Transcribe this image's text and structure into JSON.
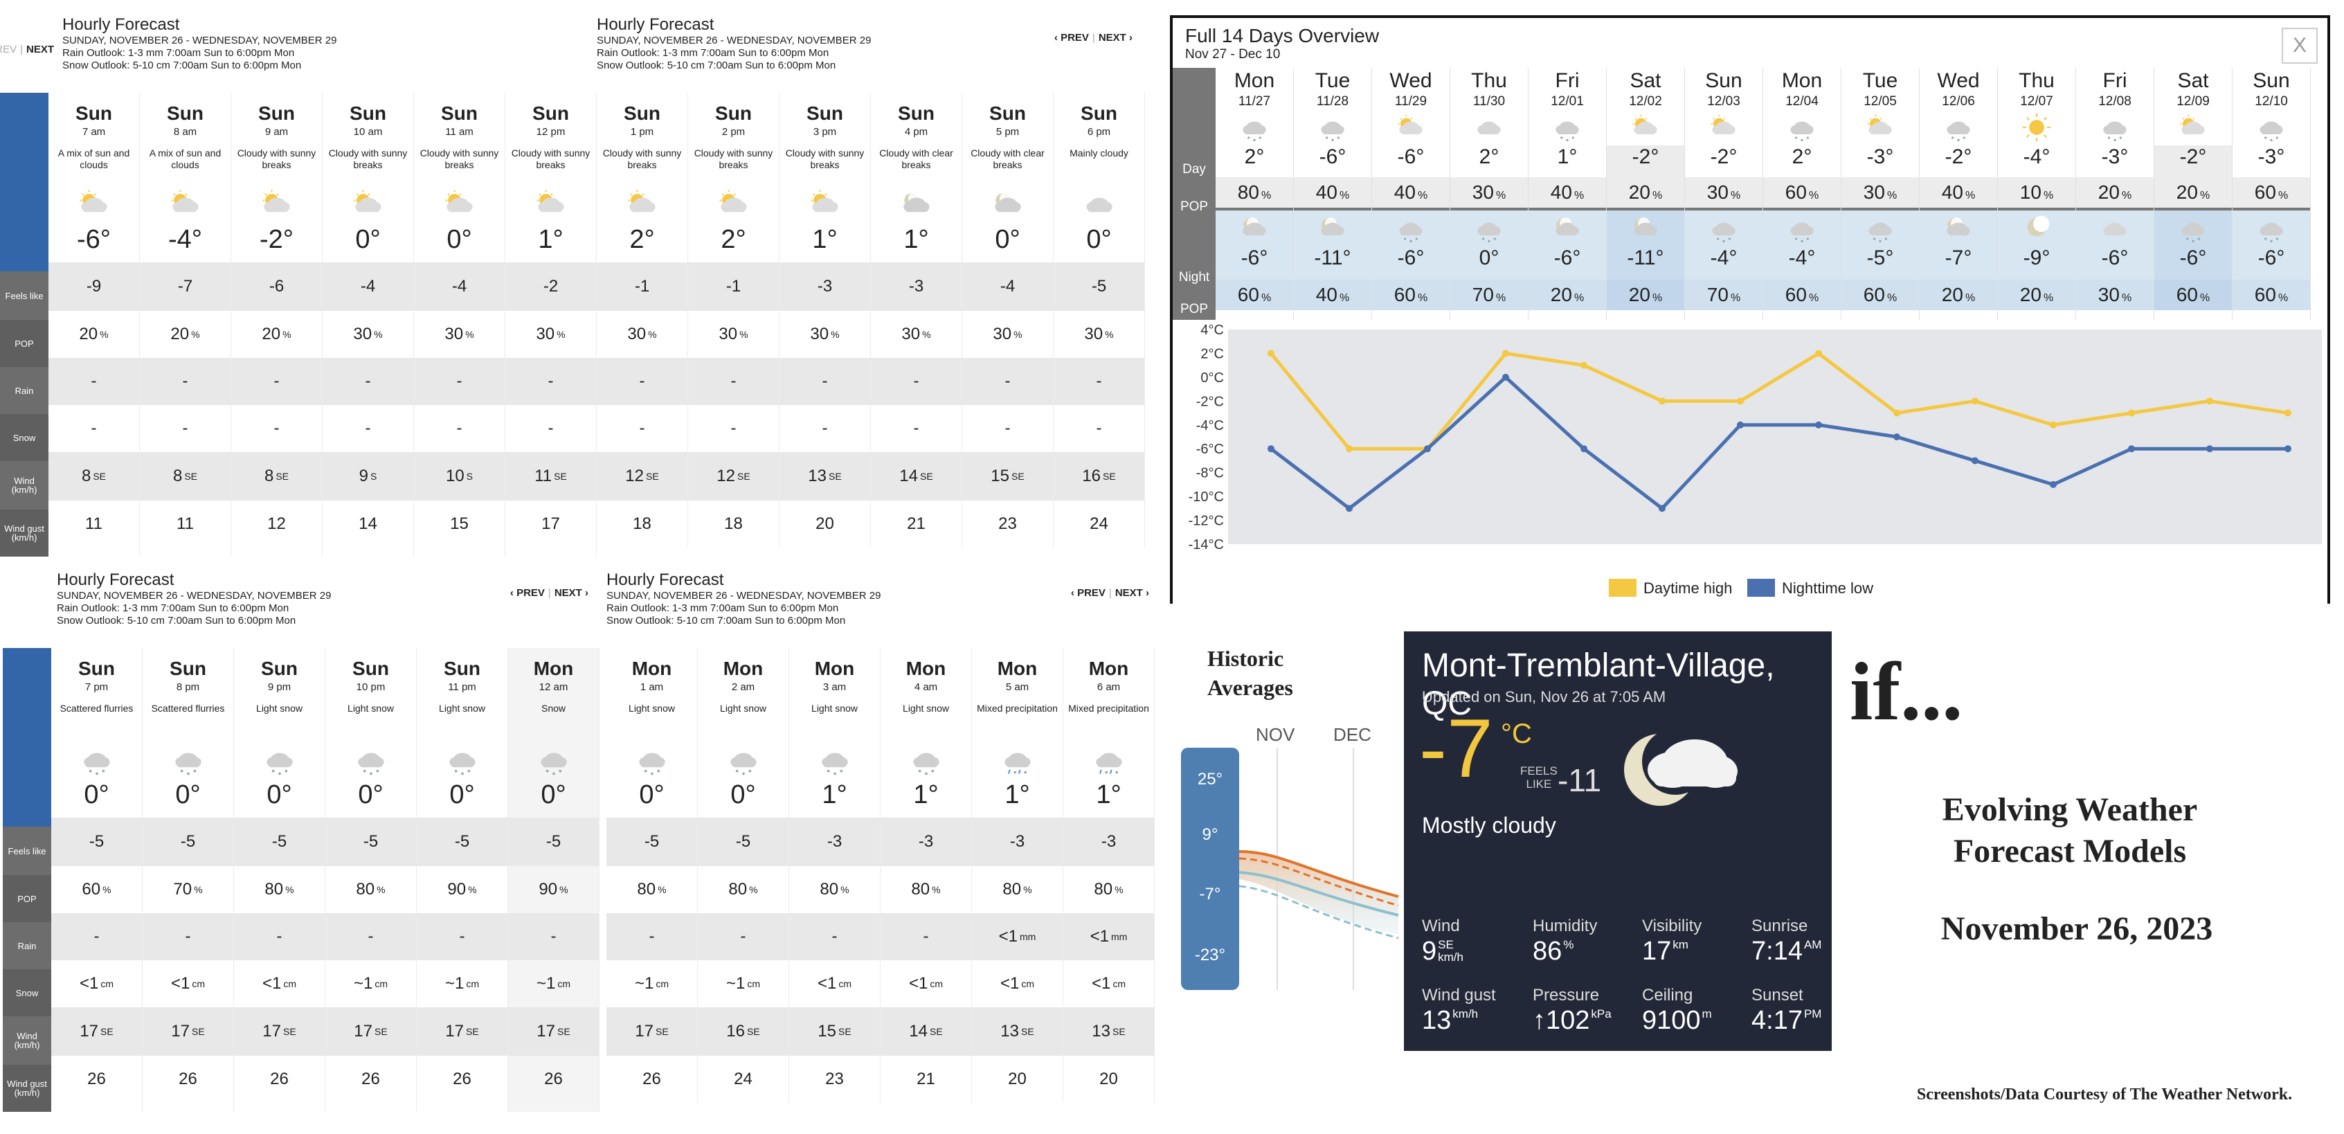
{
  "hourly_panels": [
    {
      "title": "Hourly Forecast",
      "dates": "SUNDAY, NOVEMBER 26 - WEDNESDAY, NOVEMBER 29",
      "rain": "Rain Outlook: 1-3 mm 7:00am Sun to 6:00pm Mon",
      "snow": "Snow Outlook: 5-10 cm 7:00am Sun to 6:00pm Mon",
      "prev": "‹ PREV",
      "next": "NEXT ›",
      "labels": [
        "Feels like",
        "POP",
        "Rain",
        "Snow",
        "Wind (km/h)",
        "Wind gust (km/h)"
      ],
      "hours": [
        {
          "day": "Sun",
          "time": "7 am",
          "cond": "A mix of sun and clouds",
          "icon": "sun-cloud-icon",
          "temp": "-6°",
          "feels": "-9",
          "pop": "20",
          "pop_unit": "%",
          "rain": "-",
          "snow": "-",
          "wind": "8",
          "dir": "SE",
          "gust": "11"
        },
        {
          "day": "Sun",
          "time": "8 am",
          "cond": "A mix of sun and clouds",
          "icon": "sun-cloud-icon",
          "temp": "-4°",
          "feels": "-7",
          "pop": "20",
          "pop_unit": "%",
          "rain": "-",
          "snow": "-",
          "wind": "8",
          "dir": "SE",
          "gust": "11"
        },
        {
          "day": "Sun",
          "time": "9 am",
          "cond": "Cloudy with sunny breaks",
          "icon": "sun-cloud-icon",
          "temp": "-2°",
          "feels": "-6",
          "pop": "20",
          "pop_unit": "%",
          "rain": "-",
          "snow": "-",
          "wind": "8",
          "dir": "SE",
          "gust": "12"
        },
        {
          "day": "Sun",
          "time": "10 am",
          "cond": "Cloudy with sunny breaks",
          "icon": "sun-cloud-icon",
          "temp": "0°",
          "feels": "-4",
          "pop": "30",
          "pop_unit": "%",
          "rain": "-",
          "snow": "-",
          "wind": "9",
          "dir": "S",
          "gust": "14"
        },
        {
          "day": "Sun",
          "time": "11 am",
          "cond": "Cloudy with sunny breaks",
          "icon": "sun-cloud-icon",
          "temp": "0°",
          "feels": "-4",
          "pop": "30",
          "pop_unit": "%",
          "rain": "-",
          "snow": "-",
          "wind": "10",
          "dir": "S",
          "gust": "15"
        },
        {
          "day": "Sun",
          "time": "12 pm",
          "cond": "Cloudy with sunny breaks",
          "icon": "sun-cloud-icon",
          "temp": "1°",
          "feels": "-2",
          "pop": "30",
          "pop_unit": "%",
          "rain": "-",
          "snow": "-",
          "wind": "11",
          "dir": "SE",
          "gust": "17"
        }
      ]
    },
    {
      "title": "Hourly Forecast",
      "dates": "SUNDAY, NOVEMBER 26 - WEDNESDAY, NOVEMBER 29",
      "rain": "Rain Outlook: 1-3 mm 7:00am Sun to 6:00pm Mon",
      "snow": "Snow Outlook: 5-10 cm 7:00am Sun to 6:00pm Mon",
      "prev": "‹ PREV",
      "next": "NEXT ›",
      "hours": [
        {
          "day": "Sun",
          "time": "1 pm",
          "cond": "Cloudy with sunny breaks",
          "icon": "sun-cloud-icon",
          "temp": "2°",
          "feels": "-1",
          "pop": "30",
          "pop_unit": "%",
          "rain": "-",
          "snow": "-",
          "wind": "12",
          "dir": "SE",
          "gust": "18"
        },
        {
          "day": "Sun",
          "time": "2 pm",
          "cond": "Cloudy with sunny breaks",
          "icon": "sun-cloud-icon",
          "temp": "2°",
          "feels": "-1",
          "pop": "30",
          "pop_unit": "%",
          "rain": "-",
          "snow": "-",
          "wind": "12",
          "dir": "SE",
          "gust": "18"
        },
        {
          "day": "Sun",
          "time": "3 pm",
          "cond": "Cloudy with sunny breaks",
          "icon": "sun-cloud-icon",
          "temp": "1°",
          "feels": "-3",
          "pop": "30",
          "pop_unit": "%",
          "rain": "-",
          "snow": "-",
          "wind": "13",
          "dir": "SE",
          "gust": "20"
        },
        {
          "day": "Sun",
          "time": "4 pm",
          "cond": "Cloudy with clear breaks",
          "icon": "moon-cloud-icon",
          "temp": "1°",
          "feels": "-3",
          "pop": "30",
          "pop_unit": "%",
          "rain": "-",
          "snow": "-",
          "wind": "14",
          "dir": "SE",
          "gust": "21"
        },
        {
          "day": "Sun",
          "time": "5 pm",
          "cond": "Cloudy with clear breaks",
          "icon": "moon-cloud-icon",
          "temp": "0°",
          "feels": "-4",
          "pop": "30",
          "pop_unit": "%",
          "rain": "-",
          "snow": "-",
          "wind": "15",
          "dir": "SE",
          "gust": "23"
        },
        {
          "day": "Sun",
          "time": "6 pm",
          "cond": "Mainly cloudy",
          "icon": "cloud-icon",
          "temp": "0°",
          "feels": "-5",
          "pop": "30",
          "pop_unit": "%",
          "rain": "-",
          "snow": "-",
          "wind": "16",
          "dir": "SE",
          "gust": "24"
        }
      ]
    },
    {
      "title": "Hourly Forecast",
      "dates": "SUNDAY, NOVEMBER 26 - WEDNESDAY, NOVEMBER 29",
      "rain": "Rain Outlook: 1-3 mm 7:00am Sun to 6:00pm Mon",
      "snow": "Snow Outlook: 5-10 cm 7:00am Sun to 6:00pm Mon",
      "prev": "‹ PREV",
      "next": "NEXT ›",
      "hours": [
        {
          "day": "Sun",
          "time": "7 pm",
          "cond": "Scattered flurries",
          "icon": "snow-cloud-icon",
          "temp": "0°",
          "feels": "-5",
          "pop": "60",
          "pop_unit": "%",
          "rain": "-",
          "snow": "<1",
          "snow_unit": "cm",
          "wind": "17",
          "dir": "SE",
          "gust": "26"
        },
        {
          "day": "Sun",
          "time": "8 pm",
          "cond": "Scattered flurries",
          "icon": "snow-cloud-icon",
          "temp": "0°",
          "feels": "-5",
          "pop": "70",
          "pop_unit": "%",
          "rain": "-",
          "snow": "<1",
          "snow_unit": "cm",
          "wind": "17",
          "dir": "SE",
          "gust": "26"
        },
        {
          "day": "Sun",
          "time": "9 pm",
          "cond": "Light snow",
          "icon": "snow-cloud-icon",
          "temp": "0°",
          "feels": "-5",
          "pop": "80",
          "pop_unit": "%",
          "rain": "-",
          "snow": "<1",
          "snow_unit": "cm",
          "wind": "17",
          "dir": "SE",
          "gust": "26"
        },
        {
          "day": "Sun",
          "time": "10 pm",
          "cond": "Light snow",
          "icon": "snow-cloud-icon",
          "temp": "0°",
          "feels": "-5",
          "pop": "80",
          "pop_unit": "%",
          "rain": "-",
          "snow": "~1",
          "snow_unit": "cm",
          "wind": "17",
          "dir": "SE",
          "gust": "26"
        },
        {
          "day": "Sun",
          "time": "11 pm",
          "cond": "Light snow",
          "icon": "snow-cloud-icon",
          "temp": "0°",
          "feels": "-5",
          "pop": "90",
          "pop_unit": "%",
          "rain": "-",
          "snow": "~1",
          "snow_unit": "cm",
          "wind": "17",
          "dir": "SE",
          "gust": "26"
        },
        {
          "day": "Mon",
          "time": "12 am",
          "cond": "Snow",
          "icon": "snow-cloud-icon",
          "temp": "0°",
          "feels": "-5",
          "pop": "90",
          "pop_unit": "%",
          "rain": "-",
          "snow": "~1",
          "snow_unit": "cm",
          "wind": "17",
          "dir": "SE",
          "gust": "26"
        }
      ]
    },
    {
      "title": "Hourly Forecast",
      "dates": "SUNDAY, NOVEMBER 26 - WEDNESDAY, NOVEMBER 29",
      "rain": "Rain Outlook: 1-3 mm 7:00am Sun to 6:00pm Mon",
      "snow": "Snow Outlook: 5-10 cm 7:00am Sun to 6:00pm Mon",
      "prev": "‹ PREV",
      "next": "NEXT ›",
      "hours": [
        {
          "day": "Mon",
          "time": "1 am",
          "cond": "Light snow",
          "icon": "snow-cloud-icon",
          "temp": "0°",
          "feels": "-5",
          "pop": "80",
          "pop_unit": "%",
          "rain": "-",
          "snow": "~1",
          "snow_unit": "cm",
          "wind": "17",
          "dir": "SE",
          "gust": "26"
        },
        {
          "day": "Mon",
          "time": "2 am",
          "cond": "Light snow",
          "icon": "snow-cloud-icon",
          "temp": "0°",
          "feels": "-5",
          "pop": "80",
          "pop_unit": "%",
          "rain": "-",
          "snow": "~1",
          "snow_unit": "cm",
          "wind": "16",
          "dir": "SE",
          "gust": "24"
        },
        {
          "day": "Mon",
          "time": "3 am",
          "cond": "Light snow",
          "icon": "snow-cloud-icon",
          "temp": "1°",
          "feels": "-3",
          "pop": "80",
          "pop_unit": "%",
          "rain": "-",
          "snow": "<1",
          "snow_unit": "cm",
          "wind": "15",
          "dir": "SE",
          "gust": "23"
        },
        {
          "day": "Mon",
          "time": "4 am",
          "cond": "Light snow",
          "icon": "snow-cloud-icon",
          "temp": "1°",
          "feels": "-3",
          "pop": "80",
          "pop_unit": "%",
          "rain": "-",
          "snow": "<1",
          "snow_unit": "cm",
          "wind": "14",
          "dir": "SE",
          "gust": "21"
        },
        {
          "day": "Mon",
          "time": "5 am",
          "cond": "Mixed precipitation",
          "icon": "mixed-precip-icon",
          "temp": "1°",
          "feels": "-3",
          "pop": "80",
          "pop_unit": "%",
          "rain": "<1",
          "rain_unit": "mm",
          "snow": "<1",
          "snow_unit": "cm",
          "wind": "13",
          "dir": "SE",
          "gust": "20"
        },
        {
          "day": "Mon",
          "time": "6 am",
          "cond": "Mixed precipitation",
          "icon": "mixed-precip-icon",
          "temp": "1°",
          "feels": "-3",
          "pop": "80",
          "pop_unit": "%",
          "rain": "<1",
          "rain_unit": "mm",
          "snow": "<1",
          "snow_unit": "cm",
          "wind": "13",
          "dir": "SE",
          "gust": "20"
        }
      ]
    }
  ],
  "overview": {
    "title": "Full 14 Days Overview",
    "range": "Nov 27 - Dec 10",
    "close": "X",
    "day_label": "Day",
    "night_label": "Night",
    "pop_label": "POP",
    "pct": "%",
    "days": [
      {
        "dn": "Mon",
        "dd": "11/27",
        "di": "snow-cloud-icon",
        "dt": "2°",
        "dp": "80",
        "ni": "moon-cloud-icon",
        "nt": "-6°",
        "np": "60"
      },
      {
        "dn": "Tue",
        "dd": "11/28",
        "di": "snow-cloud-icon",
        "dt": "-6°",
        "dp": "40",
        "ni": "moon-cloud-icon",
        "nt": "-11°",
        "np": "40"
      },
      {
        "dn": "Wed",
        "dd": "11/29",
        "di": "sun-cloud-icon",
        "dt": "-6°",
        "dp": "40",
        "ni": "snow-cloud-icon",
        "nt": "-6°",
        "np": "60"
      },
      {
        "dn": "Thu",
        "dd": "11/30",
        "di": "cloud-icon",
        "dt": "2°",
        "dp": "30",
        "ni": "snow-cloud-icon",
        "nt": "0°",
        "np": "70"
      },
      {
        "dn": "Fri",
        "dd": "12/01",
        "di": "snow-cloud-icon",
        "dt": "1°",
        "dp": "40",
        "ni": "moon-cloud-icon",
        "nt": "-6°",
        "np": "20"
      },
      {
        "dn": "Sat",
        "dd": "12/02",
        "di": "sun-cloud-icon",
        "dt": "-2°",
        "dp": "20",
        "ni": "moon-cloud-icon",
        "nt": "-11°",
        "np": "20"
      },
      {
        "dn": "Sun",
        "dd": "12/03",
        "di": "sun-cloud-icon",
        "dt": "-2°",
        "dp": "30",
        "ni": "snow-cloud-icon",
        "nt": "-4°",
        "np": "70"
      },
      {
        "dn": "Mon",
        "dd": "12/04",
        "di": "snow-cloud-icon",
        "dt": "2°",
        "dp": "60",
        "ni": "snow-cloud-icon",
        "nt": "-4°",
        "np": "60"
      },
      {
        "dn": "Tue",
        "dd": "12/05",
        "di": "sun-cloud-icon",
        "dt": "-3°",
        "dp": "30",
        "ni": "snow-cloud-icon",
        "nt": "-5°",
        "np": "60"
      },
      {
        "dn": "Wed",
        "dd": "12/06",
        "di": "snow-cloud-icon",
        "dt": "-2°",
        "dp": "40",
        "ni": "moon-cloud-icon",
        "nt": "-7°",
        "np": "20"
      },
      {
        "dn": "Thu",
        "dd": "12/07",
        "di": "sun-icon",
        "dt": "-4°",
        "dp": "10",
        "ni": "moon-icon",
        "nt": "-9°",
        "np": "20"
      },
      {
        "dn": "Fri",
        "dd": "12/08",
        "di": "snow-cloud-icon",
        "dt": "-3°",
        "dp": "20",
        "ni": "cloud-icon",
        "nt": "-6°",
        "np": "30"
      },
      {
        "dn": "Sat",
        "dd": "12/09",
        "di": "sun-cloud-icon",
        "dt": "-2°",
        "dp": "20",
        "ni": "snow-cloud-icon",
        "nt": "-6°",
        "np": "60"
      },
      {
        "dn": "Sun",
        "dd": "12/10",
        "di": "snow-cloud-icon",
        "dt": "-3°",
        "dp": "60",
        "ni": "snow-cloud-icon",
        "nt": "-6°",
        "np": "60"
      }
    ]
  },
  "chart_data": {
    "type": "line",
    "categories": [
      "11/27",
      "11/28",
      "11/29",
      "11/30",
      "12/01",
      "12/02",
      "12/03",
      "12/04",
      "12/05",
      "12/06",
      "12/07",
      "12/08",
      "12/09",
      "12/10"
    ],
    "series": [
      {
        "name": "Daytime high",
        "color": "#f5c842",
        "values": [
          2,
          -6,
          -6,
          2,
          1,
          -2,
          -2,
          2,
          -3,
          -2,
          -4,
          -3,
          -2,
          -3
        ]
      },
      {
        "name": "Nighttime low",
        "color": "#4a70b0",
        "values": [
          -6,
          -11,
          -6,
          0,
          -6,
          -11,
          -4,
          -4,
          -5,
          -7,
          -9,
          -6,
          -6,
          -6
        ]
      }
    ],
    "yticks": [
      "4°C",
      "2°C",
      "0°C",
      "-2°C",
      "-4°C",
      "-6°C",
      "-8°C",
      "-10°C",
      "-12°C",
      "-14°C"
    ],
    "ylim": [
      -14,
      4
    ],
    "legend": "bottom-center",
    "grid": false
  },
  "historic": {
    "title_line1": "Historic",
    "title_line2": "Averages",
    "months": [
      "NOV",
      "DEC"
    ],
    "ticks": [
      "25°",
      "9°",
      "-7°",
      "-23°"
    ]
  },
  "current": {
    "location": "Mont-Tremblant-Village, QC",
    "updated": "Updated on Sun, Nov 26 at 7:05 AM",
    "temp": "-7",
    "unit": "°C",
    "feels_label_1": "FEELS",
    "feels_label_2": "LIKE",
    "feels": "-11",
    "condition": "Mostly cloudy",
    "icon": "moon-cloud-icon",
    "stats": [
      {
        "label": "Wind",
        "value": "9",
        "sup": "SE",
        "sub": "km/h"
      },
      {
        "label": "Humidity",
        "value": "86",
        "sup": "%",
        "sub": ""
      },
      {
        "label": "Visibility",
        "value": "17",
        "sup": "km",
        "sub": ""
      },
      {
        "label": "Sunrise",
        "value": "7:14",
        "sup": "AM",
        "sub": ""
      },
      {
        "label": "Wind gust",
        "value": "13",
        "sup": "km/h",
        "sub": ""
      },
      {
        "label": "Pressure",
        "value": "↑102",
        "sup": "kPa",
        "sub": ""
      },
      {
        "label": "Ceiling",
        "value": "9100",
        "sup": "m",
        "sub": ""
      },
      {
        "label": "Sunset",
        "value": "4:17",
        "sup": "PM",
        "sub": ""
      }
    ]
  },
  "extra": {
    "if_text": "if...",
    "evolving_1": "Evolving Weather",
    "evolving_2": "Forecast Models",
    "date": "November 26, 2023",
    "courtesy": "Screenshots/Data Courtesy of The Weather Network."
  }
}
